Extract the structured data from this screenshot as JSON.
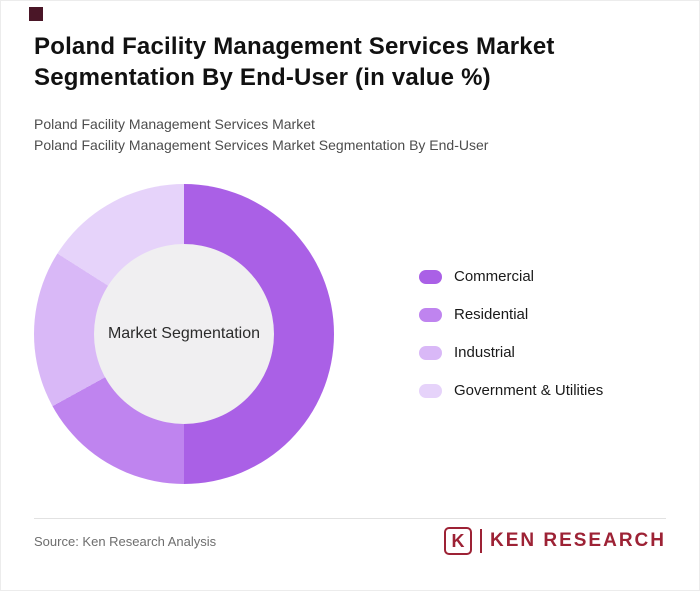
{
  "header": {
    "title_line1": "Poland Facility Management Services Market",
    "title_line2": "Segmentation By End-User (in value %)",
    "subtitle1": "Poland Facility Management Services Market",
    "subtitle2": "Poland Facility Management Services Market Segmentation By End-User"
  },
  "chart_data": {
    "type": "pie",
    "variant": "donut",
    "title": "Poland Facility Management Services Market Segmentation By End-User (in value %)",
    "center_label": "Market Segmentation",
    "legend_position": "right",
    "data_labels_shown": false,
    "segments": [
      {
        "label": "Commercial",
        "value": 50,
        "color": "#aa60e6"
      },
      {
        "label": "Residential",
        "value": 17,
        "color": "#bf84ef"
      },
      {
        "label": "Industrial",
        "value": 17,
        "color": "#d9b8f7"
      },
      {
        "label": "Government & Utilities",
        "value": 16,
        "color": "#e6d3fa"
      }
    ],
    "center_fill": "#f0eff1"
  },
  "footer": {
    "source": "Source: Ken Research Analysis",
    "logo_k": "K",
    "logo_text": "KEN RESEARCH"
  },
  "colors": {
    "brand_maroon": "#9d2235",
    "corner_accent": "#4a1627",
    "title_text": "#111111",
    "subtitle_text": "#4d4d4d"
  }
}
